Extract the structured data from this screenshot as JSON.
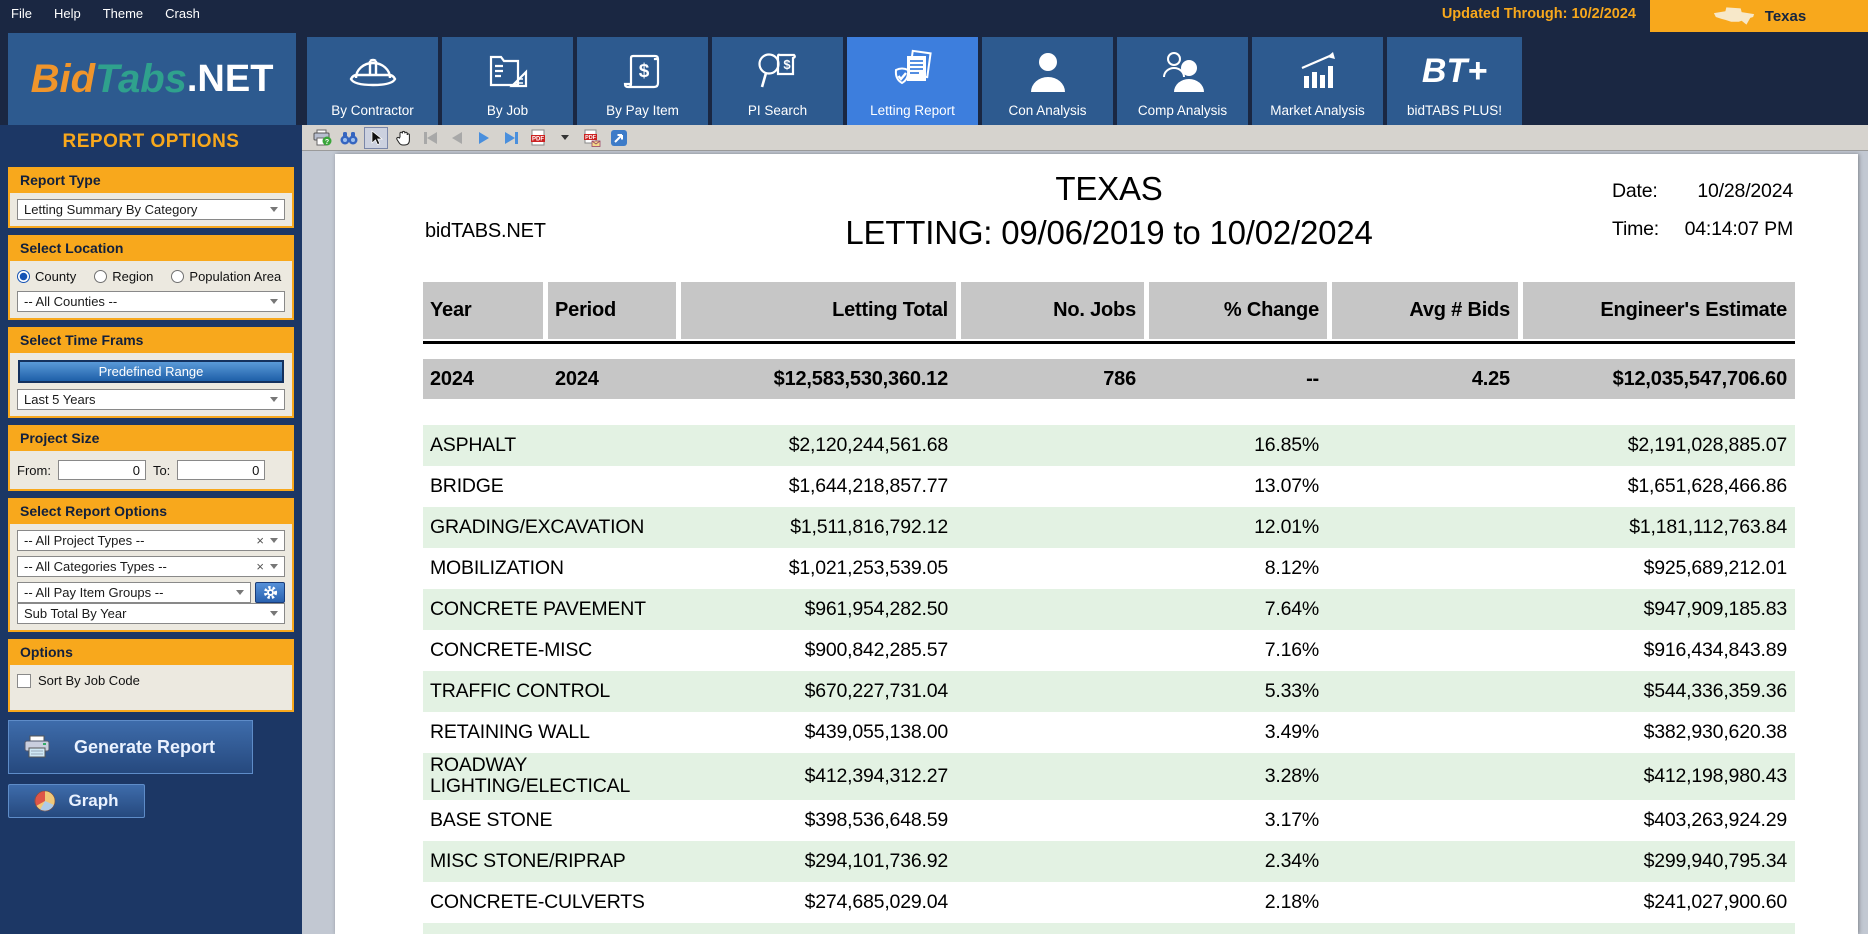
{
  "menubar": {
    "items": [
      "File",
      "Help",
      "Theme",
      "Crash"
    ],
    "updated_through": "Updated Through: 10/2/2024",
    "state": "Texas"
  },
  "brand": {
    "part1": "Bid",
    "part2": "Tabs",
    "part3": ".NET"
  },
  "nav": {
    "tabs": [
      {
        "label": "By Contractor",
        "icon": "hard-hat-icon",
        "active": false
      },
      {
        "label": "By Job",
        "icon": "job-folder-icon",
        "active": false
      },
      {
        "label": "By Pay Item",
        "icon": "pay-scroll-icon",
        "active": false
      },
      {
        "label": "PI Search",
        "icon": "search-dollar-icon",
        "active": false
      },
      {
        "label": "Letting Report",
        "icon": "report-check-icon",
        "active": true
      },
      {
        "label": "Con Analysis",
        "icon": "person-icon",
        "active": false
      },
      {
        "label": "Comp Analysis",
        "icon": "two-people-icon",
        "active": false
      },
      {
        "label": "Market Analysis",
        "icon": "chart-growth-icon",
        "active": false
      },
      {
        "label": "bidTABS PLUS!",
        "icon": "bt-plus-logo",
        "logo": "BT+",
        "active": false
      }
    ]
  },
  "toolbar": {
    "icons": [
      "print-help",
      "find-binoculars",
      "select-cursor",
      "pan-hand",
      "first-page",
      "prev-page",
      "next-page",
      "last-page",
      "export-pdf",
      "export-options",
      "email-pdf",
      "open-external"
    ]
  },
  "sidebar": {
    "title": "REPORT OPTIONS",
    "report_type": {
      "header": "Report Type",
      "value": "Letting Summary By Category"
    },
    "location": {
      "header": "Select Location",
      "options": [
        "County",
        "Region",
        "Population Area"
      ],
      "selected": "County",
      "dropdown": "-- All Counties --"
    },
    "time_frame": {
      "header": "Select Time Frams",
      "button": "Predefined Range",
      "dropdown": "Last 5 Years"
    },
    "project_size": {
      "header": "Project Size",
      "from_label": "From:",
      "from_value": "0",
      "to_label": "To:",
      "to_value": "0"
    },
    "report_options": {
      "header": "Select Report Options",
      "project_types": "-- All Project Types --",
      "category_types": "-- All Categories Types --",
      "pay_item_groups": "-- All Pay Item Groups --",
      "subtotal": "Sub Total By Year"
    },
    "options": {
      "header": "Options",
      "checkbox_label": "Sort By Job Code",
      "checked": false
    },
    "generate_label": "Generate Report",
    "graph_label": "Graph"
  },
  "report": {
    "brand": "bidTABS.NET",
    "title": "TEXAS",
    "subtitle": "LETTING: 09/06/2019 to 10/02/2024",
    "date_label": "Date:",
    "date_value": "10/28/2024",
    "time_label": "Time:",
    "time_value": "04:14:07 PM"
  },
  "chart_data": {
    "type": "table",
    "title": "TEXAS LETTING: 09/06/2019 to 10/02/2024",
    "columns": [
      "Year",
      "Period",
      "Letting Total",
      "No. Jobs",
      "% Change",
      "Avg # Bids",
      "Engineer's Estimate"
    ],
    "summary_row": [
      "2024",
      "2024",
      "$12,583,530,360.12",
      "786",
      "--",
      "4.25",
      "$12,035,547,706.60"
    ],
    "rows": [
      {
        "category": "ASPHALT",
        "letting_total": "$2,120,244,561.68",
        "pct_change": "16.85%",
        "estimate": "$2,191,028,885.07"
      },
      {
        "category": "BRIDGE",
        "letting_total": "$1,644,218,857.77",
        "pct_change": "13.07%",
        "estimate": "$1,651,628,466.86"
      },
      {
        "category": "GRADING/EXCAVATION",
        "letting_total": "$1,511,816,792.12",
        "pct_change": "12.01%",
        "estimate": "$1,181,112,763.84"
      },
      {
        "category": "MOBILIZATION",
        "letting_total": "$1,021,253,539.05",
        "pct_change": "8.12%",
        "estimate": "$925,689,212.01"
      },
      {
        "category": "CONCRETE PAVEMENT",
        "letting_total": "$961,954,282.50",
        "pct_change": "7.64%",
        "estimate": "$947,909,185.83"
      },
      {
        "category": "CONCRETE-MISC",
        "letting_total": "$900,842,285.57",
        "pct_change": "7.16%",
        "estimate": "$916,434,843.89"
      },
      {
        "category": "TRAFFIC CONTROL",
        "letting_total": "$670,227,731.04",
        "pct_change": "5.33%",
        "estimate": "$544,336,359.36"
      },
      {
        "category": "RETAINING WALL",
        "letting_total": "$439,055,138.00",
        "pct_change": "3.49%",
        "estimate": "$382,930,620.38"
      },
      {
        "category": "ROADWAY LIGHTING/ELECTICAL",
        "letting_total": "$412,394,312.27",
        "pct_change": "3.28%",
        "estimate": "$412,198,980.43"
      },
      {
        "category": "BASE STONE",
        "letting_total": "$398,536,648.59",
        "pct_change": "3.17%",
        "estimate": "$403,263,924.29"
      },
      {
        "category": "MISC STONE/RIPRAP",
        "letting_total": "$294,101,736.92",
        "pct_change": "2.34%",
        "estimate": "$299,940,795.34"
      },
      {
        "category": "CONCRETE-CULVERTS",
        "letting_total": "$274,685,029.04",
        "pct_change": "2.18%",
        "estimate": "$241,027,900.60"
      }
    ]
  }
}
